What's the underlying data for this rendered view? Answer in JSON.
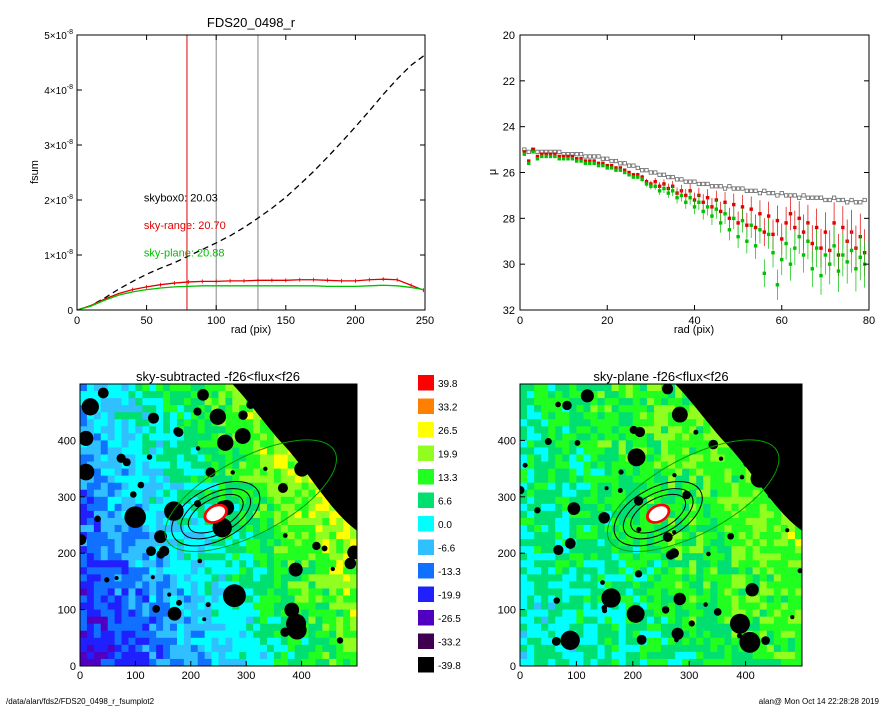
{
  "footer": {
    "path": "/data/alan/fds2/FDS20_0498_r_fsumplot2",
    "user_stamp": "alan@  Mon Oct 14 22:28:28 2019"
  },
  "chart_data": [
    {
      "type": "line",
      "title": "FDS20_0498_r",
      "xlabel": "rad (pix)",
      "ylabel": "fsum",
      "xlim": [
        0,
        250
      ],
      "ylim": [
        0,
        5e-08
      ],
      "xticks": [
        0,
        50,
        100,
        150,
        200,
        250
      ],
      "yticks": [
        {
          "v": 0,
          "mant": "0",
          "exp": ""
        },
        {
          "v": 1e-08,
          "mant": "1×10",
          "exp": "-8"
        },
        {
          "v": 2e-08,
          "mant": "2×10",
          "exp": "-8"
        },
        {
          "v": 3e-08,
          "mant": "3×10",
          "exp": "-8"
        },
        {
          "v": 4e-08,
          "mant": "4×10",
          "exp": "-8"
        },
        {
          "v": 5e-08,
          "mant": "5×10",
          "exp": "-8"
        }
      ],
      "vlines": [
        {
          "x": 79,
          "color": "#e00000"
        },
        {
          "x": 100,
          "color": "#888888"
        },
        {
          "x": 130,
          "color": "#888888"
        }
      ],
      "annotations": [
        {
          "text": "skybox0: 20.03",
          "color": "#000000",
          "x": 48,
          "y": 1.97e-08
        },
        {
          "text": "sky-range: 20.70",
          "color": "#e00000",
          "x": 48,
          "y": 1.47e-08
        },
        {
          "text": "sky-plane: 20.88",
          "color": "#00c000",
          "x": 48,
          "y": 9.7e-09
        }
      ],
      "series": [
        {
          "style": "dashed",
          "color": "#000000",
          "x": [
            0,
            10,
            20,
            30,
            40,
            50,
            60,
            70,
            80,
            90,
            100,
            110,
            120,
            130,
            140,
            150,
            160,
            170,
            180,
            190,
            200,
            210,
            220,
            230,
            240,
            249
          ],
          "values": [
            0,
            8e-10,
            2.2e-09,
            3.8e-09,
            5.2e-09,
            6.5e-09,
            7.6e-09,
            8.6e-09,
            9.8e-09,
            1.1e-08,
            1.22e-08,
            1.35e-08,
            1.5e-08,
            1.67e-08,
            1.85e-08,
            2.05e-08,
            2.28e-08,
            2.52e-08,
            2.78e-08,
            3.05e-08,
            3.33e-08,
            3.62e-08,
            3.92e-08,
            4.2e-08,
            4.45e-08,
            4.62e-08
          ]
        },
        {
          "style": "solid",
          "color": "#e00000",
          "x": [
            0,
            10,
            20,
            30,
            40,
            50,
            60,
            70,
            80,
            90,
            100,
            110,
            120,
            130,
            140,
            150,
            160,
            170,
            180,
            190,
            200,
            210,
            220,
            230,
            240,
            249
          ],
          "values": [
            0,
            8e-10,
            2e-09,
            3e-09,
            3.7e-09,
            4.2e-09,
            4.6e-09,
            4.9e-09,
            5.1e-09,
            5.2e-09,
            5.2e-09,
            5.3e-09,
            5.3e-09,
            5.4e-09,
            5.4e-09,
            5.4e-09,
            5.5e-09,
            5.5e-09,
            5.4e-09,
            5.3e-09,
            5.3e-09,
            5.5e-09,
            5.6e-09,
            5.5e-09,
            4.5e-09,
            3.6e-09
          ]
        },
        {
          "style": "solid",
          "color": "#00c000",
          "x": [
            0,
            10,
            20,
            30,
            40,
            50,
            60,
            70,
            80,
            90,
            100,
            110,
            120,
            130,
            140,
            150,
            160,
            170,
            180,
            190,
            200,
            210,
            220,
            230,
            240,
            249
          ],
          "values": [
            0,
            7e-10,
            1.8e-09,
            2.7e-09,
            3.3e-09,
            3.7e-09,
            4e-09,
            4.2e-09,
            4.3e-09,
            4.4e-09,
            4.4e-09,
            4.4e-09,
            4.4e-09,
            4.4e-09,
            4.4e-09,
            4.4e-09,
            4.4e-09,
            4.4e-09,
            4.3e-09,
            4.3e-09,
            4.3e-09,
            4.4e-09,
            4.5e-09,
            4.4e-09,
            4.1e-09,
            3.7e-09
          ]
        }
      ]
    },
    {
      "type": "scatter",
      "title": "",
      "xlabel": "rad (pix)",
      "ylabel": "μ",
      "xlim": [
        0,
        80
      ],
      "ylim": [
        20,
        32
      ],
      "y_inverted": true,
      "xticks": [
        0,
        20,
        40,
        60,
        80
      ],
      "yticks": [
        20,
        22,
        24,
        26,
        28,
        30,
        32
      ],
      "series": [
        {
          "color": "#666666",
          "marker": "open-square",
          "x": [
            1,
            2,
            3,
            4,
            5,
            6,
            7,
            8,
            9,
            10,
            11,
            12,
            13,
            14,
            15,
            16,
            17,
            18,
            19,
            20,
            21,
            22,
            23,
            24,
            25,
            26,
            27,
            28,
            29,
            30,
            31,
            32,
            33,
            34,
            35,
            36,
            37,
            38,
            39,
            40,
            41,
            42,
            43,
            44,
            45,
            46,
            47,
            48,
            49,
            50,
            51,
            52,
            53,
            54,
            55,
            56,
            57,
            58,
            59,
            60,
            61,
            62,
            63,
            64,
            65,
            66,
            67,
            68,
            69,
            70,
            71,
            72,
            73,
            74,
            75,
            76,
            77,
            78,
            79
          ],
          "values": [
            25.0,
            25.1,
            25.0,
            25.1,
            25.1,
            25.1,
            25.1,
            25.1,
            25.1,
            25.2,
            25.2,
            25.2,
            25.2,
            25.2,
            25.3,
            25.3,
            25.3,
            25.3,
            25.4,
            25.4,
            25.5,
            25.5,
            25.6,
            25.6,
            25.7,
            25.7,
            25.8,
            25.9,
            25.9,
            26.0,
            26.0,
            26.1,
            26.1,
            26.2,
            26.2,
            26.3,
            26.3,
            26.4,
            26.4,
            26.4,
            26.5,
            26.5,
            26.5,
            26.6,
            26.6,
            26.6,
            26.7,
            26.6,
            26.7,
            26.7,
            26.7,
            26.8,
            26.8,
            26.8,
            26.9,
            26.8,
            26.9,
            26.9,
            27.0,
            26.9,
            27.0,
            27.0,
            27.0,
            27.1,
            27.0,
            27.1,
            27.1,
            27.1,
            27.1,
            27.2,
            27.2,
            27.1,
            27.2,
            27.2,
            27.3,
            27.2,
            27.3,
            27.3,
            27.2
          ]
        },
        {
          "color": "#e00000",
          "marker": "filled-square",
          "x": [
            1,
            2,
            3,
            4,
            5,
            6,
            7,
            8,
            9,
            10,
            11,
            12,
            13,
            14,
            15,
            16,
            17,
            18,
            19,
            20,
            21,
            22,
            23,
            24,
            25,
            26,
            27,
            28,
            29,
            30,
            31,
            32,
            33,
            34,
            35,
            36,
            37,
            38,
            39,
            40,
            41,
            42,
            43,
            44,
            45,
            46,
            47,
            48,
            49,
            50,
            51,
            52,
            53,
            54,
            55,
            56,
            57,
            58,
            59,
            60,
            61,
            62,
            63,
            64,
            65,
            66,
            67,
            68,
            69,
            70,
            71,
            72,
            73,
            74,
            75,
            76,
            77,
            78,
            79
          ],
          "values": [
            25.1,
            25.5,
            25.0,
            25.3,
            25.2,
            25.2,
            25.2,
            25.2,
            25.3,
            25.3,
            25.3,
            25.3,
            25.4,
            25.4,
            25.5,
            25.5,
            25.5,
            25.6,
            25.6,
            25.7,
            25.7,
            25.8,
            25.8,
            25.9,
            26.0,
            26.1,
            26.1,
            26.2,
            26.4,
            26.5,
            26.4,
            26.6,
            26.5,
            26.7,
            26.6,
            26.9,
            26.8,
            27.0,
            26.8,
            27.2,
            27.0,
            27.3,
            27.1,
            27.5,
            27.2,
            27.7,
            27.3,
            28.0,
            27.4,
            28.2,
            27.5,
            28.3,
            27.6,
            28.4,
            27.8,
            28.6,
            27.9,
            28.7,
            28.1,
            28.9,
            28.2,
            27.8,
            28.4,
            28.0,
            28.6,
            28.2,
            29.1,
            28.4,
            29.3,
            28.6,
            29.4,
            28.2,
            29.6,
            28.4,
            29.0,
            28.6,
            29.3,
            28.8,
            29.5
          ]
        },
        {
          "color": "#00c000",
          "marker": "filled-square",
          "x": [
            1,
            2,
            3,
            4,
            5,
            6,
            7,
            8,
            9,
            10,
            11,
            12,
            13,
            14,
            15,
            16,
            17,
            18,
            19,
            20,
            21,
            22,
            23,
            24,
            25,
            26,
            27,
            28,
            29,
            30,
            31,
            32,
            33,
            34,
            35,
            36,
            37,
            38,
            39,
            40,
            41,
            42,
            43,
            44,
            45,
            46,
            47,
            48,
            49,
            50,
            51,
            52,
            53,
            54,
            55,
            56,
            57,
            58,
            59,
            60,
            61,
            62,
            63,
            64,
            65,
            66,
            67,
            68,
            69,
            70,
            71,
            72,
            73,
            74,
            75,
            76,
            77,
            78,
            79
          ],
          "values": [
            25.2,
            25.6,
            25.1,
            25.4,
            25.3,
            25.3,
            25.3,
            25.3,
            25.4,
            25.4,
            25.4,
            25.4,
            25.5,
            25.5,
            25.6,
            25.6,
            25.6,
            25.7,
            25.7,
            25.8,
            25.8,
            25.9,
            25.9,
            26.0,
            26.1,
            26.2,
            26.2,
            26.3,
            26.5,
            26.6,
            26.6,
            26.8,
            26.7,
            26.9,
            26.8,
            27.1,
            27.0,
            27.3,
            27.1,
            27.5,
            27.3,
            27.7,
            27.5,
            27.9,
            27.6,
            28.2,
            27.8,
            28.5,
            28.0,
            28.8,
            28.1,
            29.0,
            28.3,
            29.2,
            28.5,
            30.4,
            28.7,
            29.5,
            30.9,
            29.8,
            29.1,
            30.0,
            29.3,
            28.8,
            29.6,
            29.0,
            30.2,
            29.3,
            30.5,
            29.6,
            30.0,
            29.2,
            30.3,
            29.6,
            29.9,
            29.4,
            30.2,
            29.7,
            30.0
          ]
        }
      ]
    },
    {
      "type": "heatmap",
      "title": "sky-subtracted -f26<flux<f26",
      "xlim": [
        0,
        500
      ],
      "ylim": [
        0,
        500
      ],
      "xticks": [
        0,
        100,
        200,
        300,
        400
      ],
      "yticks": [
        0,
        100,
        200,
        300,
        400
      ]
    },
    {
      "type": "heatmap",
      "title": "sky-plane -f26<flux<f26",
      "xlim": [
        0,
        500
      ],
      "ylim": [
        0,
        500
      ],
      "xticks": [
        0,
        100,
        200,
        300,
        400
      ],
      "yticks": [
        0,
        100,
        200,
        300,
        400
      ]
    }
  ],
  "colorbar": {
    "labels": [
      "39.8",
      "33.2",
      "26.5",
      "19.9",
      "13.3",
      "6.6",
      "0.0",
      "-6.6",
      "-13.3",
      "-19.9",
      "-26.5",
      "-33.2",
      "-39.8"
    ],
    "colors": [
      "#ff0000",
      "#ff8000",
      "#ffff00",
      "#90ff20",
      "#20ff20",
      "#00e070",
      "#00ffff",
      "#30c0ff",
      "#1070ff",
      "#2020ff",
      "#5000c0",
      "#400050",
      "#000000"
    ]
  }
}
